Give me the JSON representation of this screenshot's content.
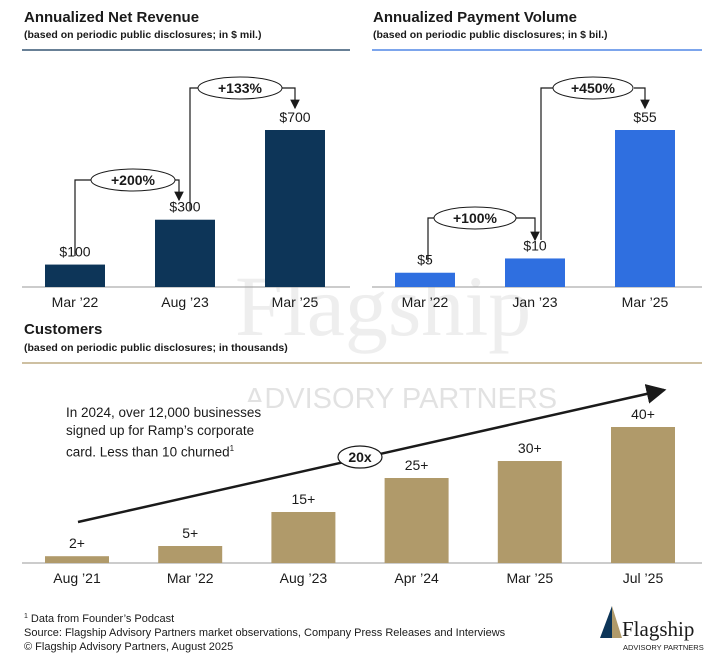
{
  "chart_data": [
    {
      "type": "bar",
      "title": "Annualized Net Revenue",
      "subtitle": "(based on periodic public disclosures; in $ mil.)",
      "categories": [
        "Mar ’22",
        "Aug ’23",
        "Mar ’25"
      ],
      "values": [
        100,
        300,
        700
      ],
      "value_labels": [
        "$100",
        "$300",
        "$700"
      ],
      "color": "#0d3558",
      "annotations": [
        "+200%",
        "+133%"
      ]
    },
    {
      "type": "bar",
      "title": "Annualized Payment Volume",
      "subtitle": "(based on periodic public disclosures; in $ bil.)",
      "categories": [
        "Mar ’22",
        "Jan ’23",
        "Mar ’25"
      ],
      "values": [
        5,
        10,
        55
      ],
      "value_labels": [
        "$5",
        "$10",
        "$55"
      ],
      "color": "#2f6fe0",
      "annotations": [
        "+100%",
        "+450%"
      ]
    },
    {
      "type": "bar",
      "title": "Customers",
      "subtitle": "(based on periodic public disclosures; in thousands)",
      "categories": [
        "Aug ’21",
        "Mar ’22",
        "Aug ’23",
        "Apr ’24",
        "Mar ’25",
        "Jul ’25"
      ],
      "values": [
        2,
        5,
        15,
        25,
        30,
        40
      ],
      "value_labels": [
        "2+",
        "5+",
        "15+",
        "25+",
        "30+",
        "40+"
      ],
      "color": "#b09a6a",
      "annotations": [
        "20x"
      ],
      "callout": {
        "text": "In 2024, over 12,000 businesses signed up for Ramp’s corporate card. Less than 10 churned",
        "note": "1"
      }
    }
  ],
  "footnotes": [
    {
      "marker": "1",
      "text": "Data from Founder’s Podcast"
    },
    "Source: Flagship Advisory Partners market observations, Company Press Releases and Interviews",
    "© Flagship Advisory Partners, August 2025"
  ],
  "logo": {
    "name": "Flagship",
    "tagline": "ADVISORY PARTNERS"
  }
}
